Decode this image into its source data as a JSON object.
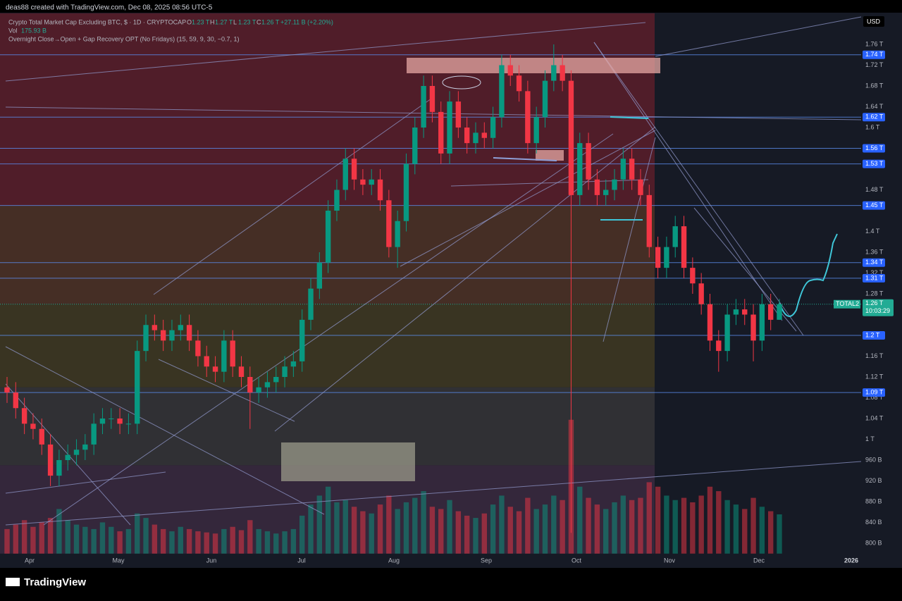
{
  "header": {
    "author_line": "deas88 created with TradingView.com, Dec 08, 2025 08:56 UTC-5",
    "symbol": "Crypto Total Market Cap Excluding BTC, $ · 1D · CRYPTOCAP",
    "ohlc": [
      {
        "key": "O",
        "value": "1.23 T"
      },
      {
        "key": "H",
        "value": "1.27 T"
      },
      {
        "key": "L",
        "value": "1.23 T"
      },
      {
        "key": "C",
        "value": "1.26 T"
      }
    ],
    "change": "+27.11 B (+2.20%)",
    "volume_key": "Vol",
    "volume_value": "175.93 B",
    "indicator": "Overnight Close→Open + Gap Recovery OPT (No Fridays) (15, 59, 9, 30, −0.7, 1)",
    "currency": "USD"
  },
  "footer": {
    "logo": "TradingView"
  },
  "chart_data": {
    "type": "candlestick",
    "up_color": "#089981",
    "down_color": "#f23645",
    "open": [
      1.1,
      1.09,
      1.06,
      1.03,
      1.02,
      0.99,
      0.93,
      0.96,
      0.97,
      0.98,
      0.99,
      1.03,
      1.04,
      1.04,
      1.03,
      1.03,
      1.17,
      1.22,
      1.21,
      1.19,
      1.21,
      1.22,
      1.19,
      1.16,
      1.14,
      1.13,
      1.19,
      1.14,
      1.12,
      1.09,
      1.1,
      1.11,
      1.12,
      1.14,
      1.15,
      1.23,
      1.29,
      1.34,
      1.44,
      1.48,
      1.54,
      1.5,
      1.49,
      1.5,
      1.46,
      1.37,
      1.42,
      1.53,
      1.6,
      1.68,
      1.63,
      1.55,
      1.65,
      1.6,
      1.57,
      1.59,
      1.58,
      1.62,
      1.72,
      1.7,
      1.67,
      1.57,
      1.62,
      1.69,
      1.72,
      1.69,
      1.47,
      1.57,
      1.5,
      1.47,
      1.48,
      1.5,
      1.54,
      1.5,
      1.47,
      1.37,
      1.33,
      1.37,
      1.41,
      1.33,
      1.3,
      1.26,
      1.19,
      1.17,
      1.24,
      1.25,
      1.24,
      1.19,
      1.26,
      1.23
    ],
    "high": [
      1.12,
      1.11,
      1.08,
      1.05,
      1.04,
      1.01,
      0.98,
      0.99,
      1.0,
      1.01,
      1.05,
      1.06,
      1.06,
      1.06,
      1.05,
      1.19,
      1.24,
      1.24,
      1.23,
      1.23,
      1.24,
      1.24,
      1.21,
      1.18,
      1.16,
      1.21,
      1.21,
      1.16,
      1.14,
      1.12,
      1.13,
      1.14,
      1.16,
      1.17,
      1.25,
      1.31,
      1.36,
      1.46,
      1.5,
      1.56,
      1.56,
      1.52,
      1.52,
      1.52,
      1.48,
      1.44,
      1.55,
      1.62,
      1.7,
      1.7,
      1.65,
      1.67,
      1.67,
      1.62,
      1.61,
      1.61,
      1.64,
      1.74,
      1.74,
      1.72,
      1.69,
      1.64,
      1.71,
      1.76,
      1.74,
      1.71,
      1.59,
      1.59,
      1.52,
      1.5,
      1.52,
      1.56,
      1.56,
      1.52,
      1.49,
      1.39,
      1.39,
      1.43,
      1.43,
      1.35,
      1.32,
      1.28,
      1.21,
      1.26,
      1.27,
      1.27,
      1.26,
      1.28,
      1.28,
      1.27
    ],
    "low": [
      1.07,
      1.04,
      1.01,
      1.0,
      0.97,
      0.91,
      0.91,
      0.94,
      0.95,
      0.96,
      0.97,
      1.01,
      1.02,
      1.01,
      1.01,
      1.01,
      1.15,
      1.19,
      1.17,
      1.17,
      1.19,
      1.17,
      1.14,
      1.12,
      1.11,
      1.11,
      1.12,
      1.1,
      1.02,
      1.07,
      1.08,
      1.09,
      1.1,
      1.12,
      1.13,
      1.21,
      1.27,
      1.32,
      1.42,
      1.46,
      1.48,
      1.47,
      1.47,
      1.44,
      1.35,
      1.33,
      1.4,
      1.51,
      1.58,
      1.61,
      1.53,
      1.53,
      1.58,
      1.55,
      1.55,
      1.56,
      1.56,
      1.6,
      1.68,
      1.65,
      1.55,
      1.55,
      1.6,
      1.67,
      1.67,
      0.82,
      1.45,
      1.48,
      1.45,
      1.45,
      1.46,
      1.48,
      1.48,
      1.45,
      1.35,
      1.31,
      1.31,
      1.35,
      1.31,
      1.28,
      1.24,
      1.17,
      1.13,
      1.15,
      1.22,
      1.22,
      1.15,
      1.17,
      1.21,
      1.23
    ],
    "close": [
      1.09,
      1.06,
      1.03,
      1.02,
      0.99,
      0.93,
      0.96,
      0.97,
      0.98,
      0.99,
      1.03,
      1.04,
      1.04,
      1.03,
      1.03,
      1.17,
      1.22,
      1.21,
      1.19,
      1.21,
      1.22,
      1.19,
      1.16,
      1.14,
      1.13,
      1.19,
      1.14,
      1.12,
      1.09,
      1.1,
      1.11,
      1.12,
      1.14,
      1.15,
      1.23,
      1.29,
      1.34,
      1.44,
      1.48,
      1.54,
      1.5,
      1.49,
      1.5,
      1.46,
      1.37,
      1.42,
      1.53,
      1.6,
      1.68,
      1.63,
      1.55,
      1.65,
      1.6,
      1.57,
      1.59,
      1.58,
      1.62,
      1.72,
      1.7,
      1.67,
      1.57,
      1.62,
      1.69,
      1.72,
      1.69,
      1.47,
      1.57,
      1.5,
      1.47,
      1.48,
      1.5,
      1.54,
      1.5,
      1.47,
      1.37,
      1.33,
      1.37,
      1.41,
      1.33,
      1.3,
      1.26,
      1.19,
      1.17,
      1.24,
      1.25,
      1.24,
      1.19,
      1.26,
      1.23,
      1.26
    ],
    "volume": [
      110,
      130,
      150,
      120,
      140,
      160,
      200,
      150,
      130,
      120,
      110,
      140,
      120,
      100,
      110,
      180,
      160,
      130,
      110,
      100,
      120,
      110,
      100,
      95,
      90,
      110,
      120,
      105,
      150,
      110,
      100,
      90,
      100,
      110,
      170,
      220,
      260,
      300,
      230,
      240,
      210,
      190,
      180,
      220,
      260,
      200,
      230,
      250,
      280,
      210,
      200,
      240,
      190,
      170,
      160,
      180,
      220,
      260,
      210,
      190,
      250,
      200,
      220,
      260,
      240,
      600,
      300,
      250,
      220,
      200,
      230,
      260,
      240,
      250,
      320,
      300,
      260,
      240,
      250,
      230,
      260,
      300,
      280,
      240,
      220,
      200,
      250,
      210,
      190,
      175.93
    ],
    "x_labels": [
      "Apr",
      "May",
      "Jun",
      "Jul",
      "Aug",
      "Sep",
      "Oct",
      "Nov",
      "Dec",
      "2026"
    ],
    "ylim": [
      0.78,
      1.82
    ],
    "yticks": [
      {
        "value": 0.8,
        "label": "800 B"
      },
      {
        "value": 0.84,
        "label": "840 B"
      },
      {
        "value": 0.88,
        "label": "880 B"
      },
      {
        "value": 0.92,
        "label": "920 B"
      },
      {
        "value": 0.96,
        "label": "960 B"
      },
      {
        "value": 1,
        "label": "1 T"
      },
      {
        "value": 1.04,
        "label": "1.04 T"
      },
      {
        "value": 1.08,
        "label": "1.08 T"
      },
      {
        "value": 1.12,
        "label": "1.12 T"
      },
      {
        "value": 1.16,
        "label": "1.16 T"
      },
      {
        "value": 1.28,
        "label": "1.28 T"
      },
      {
        "value": 1.32,
        "label": "1.32 T"
      },
      {
        "value": 1.36,
        "label": "1.36 T"
      },
      {
        "value": 1.4,
        "label": "1.4 T"
      },
      {
        "value": 1.48,
        "label": "1.48 T"
      },
      {
        "value": 1.6,
        "label": "1.6 T"
      },
      {
        "value": 1.64,
        "label": "1.64 T"
      },
      {
        "value": 1.68,
        "label": "1.68 T"
      },
      {
        "value": 1.72,
        "label": "1.72 T"
      },
      {
        "value": 1.76,
        "label": "1.76 T"
      }
    ],
    "levels": [
      {
        "value": 1.74,
        "label": "1.74 T"
      },
      {
        "value": 1.62,
        "label": "1.62 T"
      },
      {
        "value": 1.56,
        "label": "1.56 T"
      },
      {
        "value": 1.53,
        "label": "1.53 T"
      },
      {
        "value": 1.45,
        "label": "1.45 T"
      },
      {
        "value": 1.34,
        "label": "1.34 T"
      },
      {
        "value": 1.31,
        "label": "1.31 T"
      },
      {
        "value": 1.2,
        "label": "1.2 T"
      },
      {
        "value": 1.09,
        "label": "1.09 T"
      }
    ],
    "zones": [
      {
        "from": 1.45,
        "to": 1.82,
        "color": "#5a1e2a"
      },
      {
        "from": 1.26,
        "to": 1.45,
        "color": "#4e3226"
      },
      {
        "from": 1.1,
        "to": 1.26,
        "color": "#3f3a22"
      },
      {
        "from": 0.95,
        "to": 1.1,
        "color": "#353537"
      },
      {
        "from": 0.78,
        "to": 0.95,
        "color": "#3a2a40"
      }
    ],
    "last_price": {
      "value": 1.26,
      "label": "1.26 T"
    },
    "countdown": "10:03:29",
    "symbol_tag": "TOTAL2"
  }
}
